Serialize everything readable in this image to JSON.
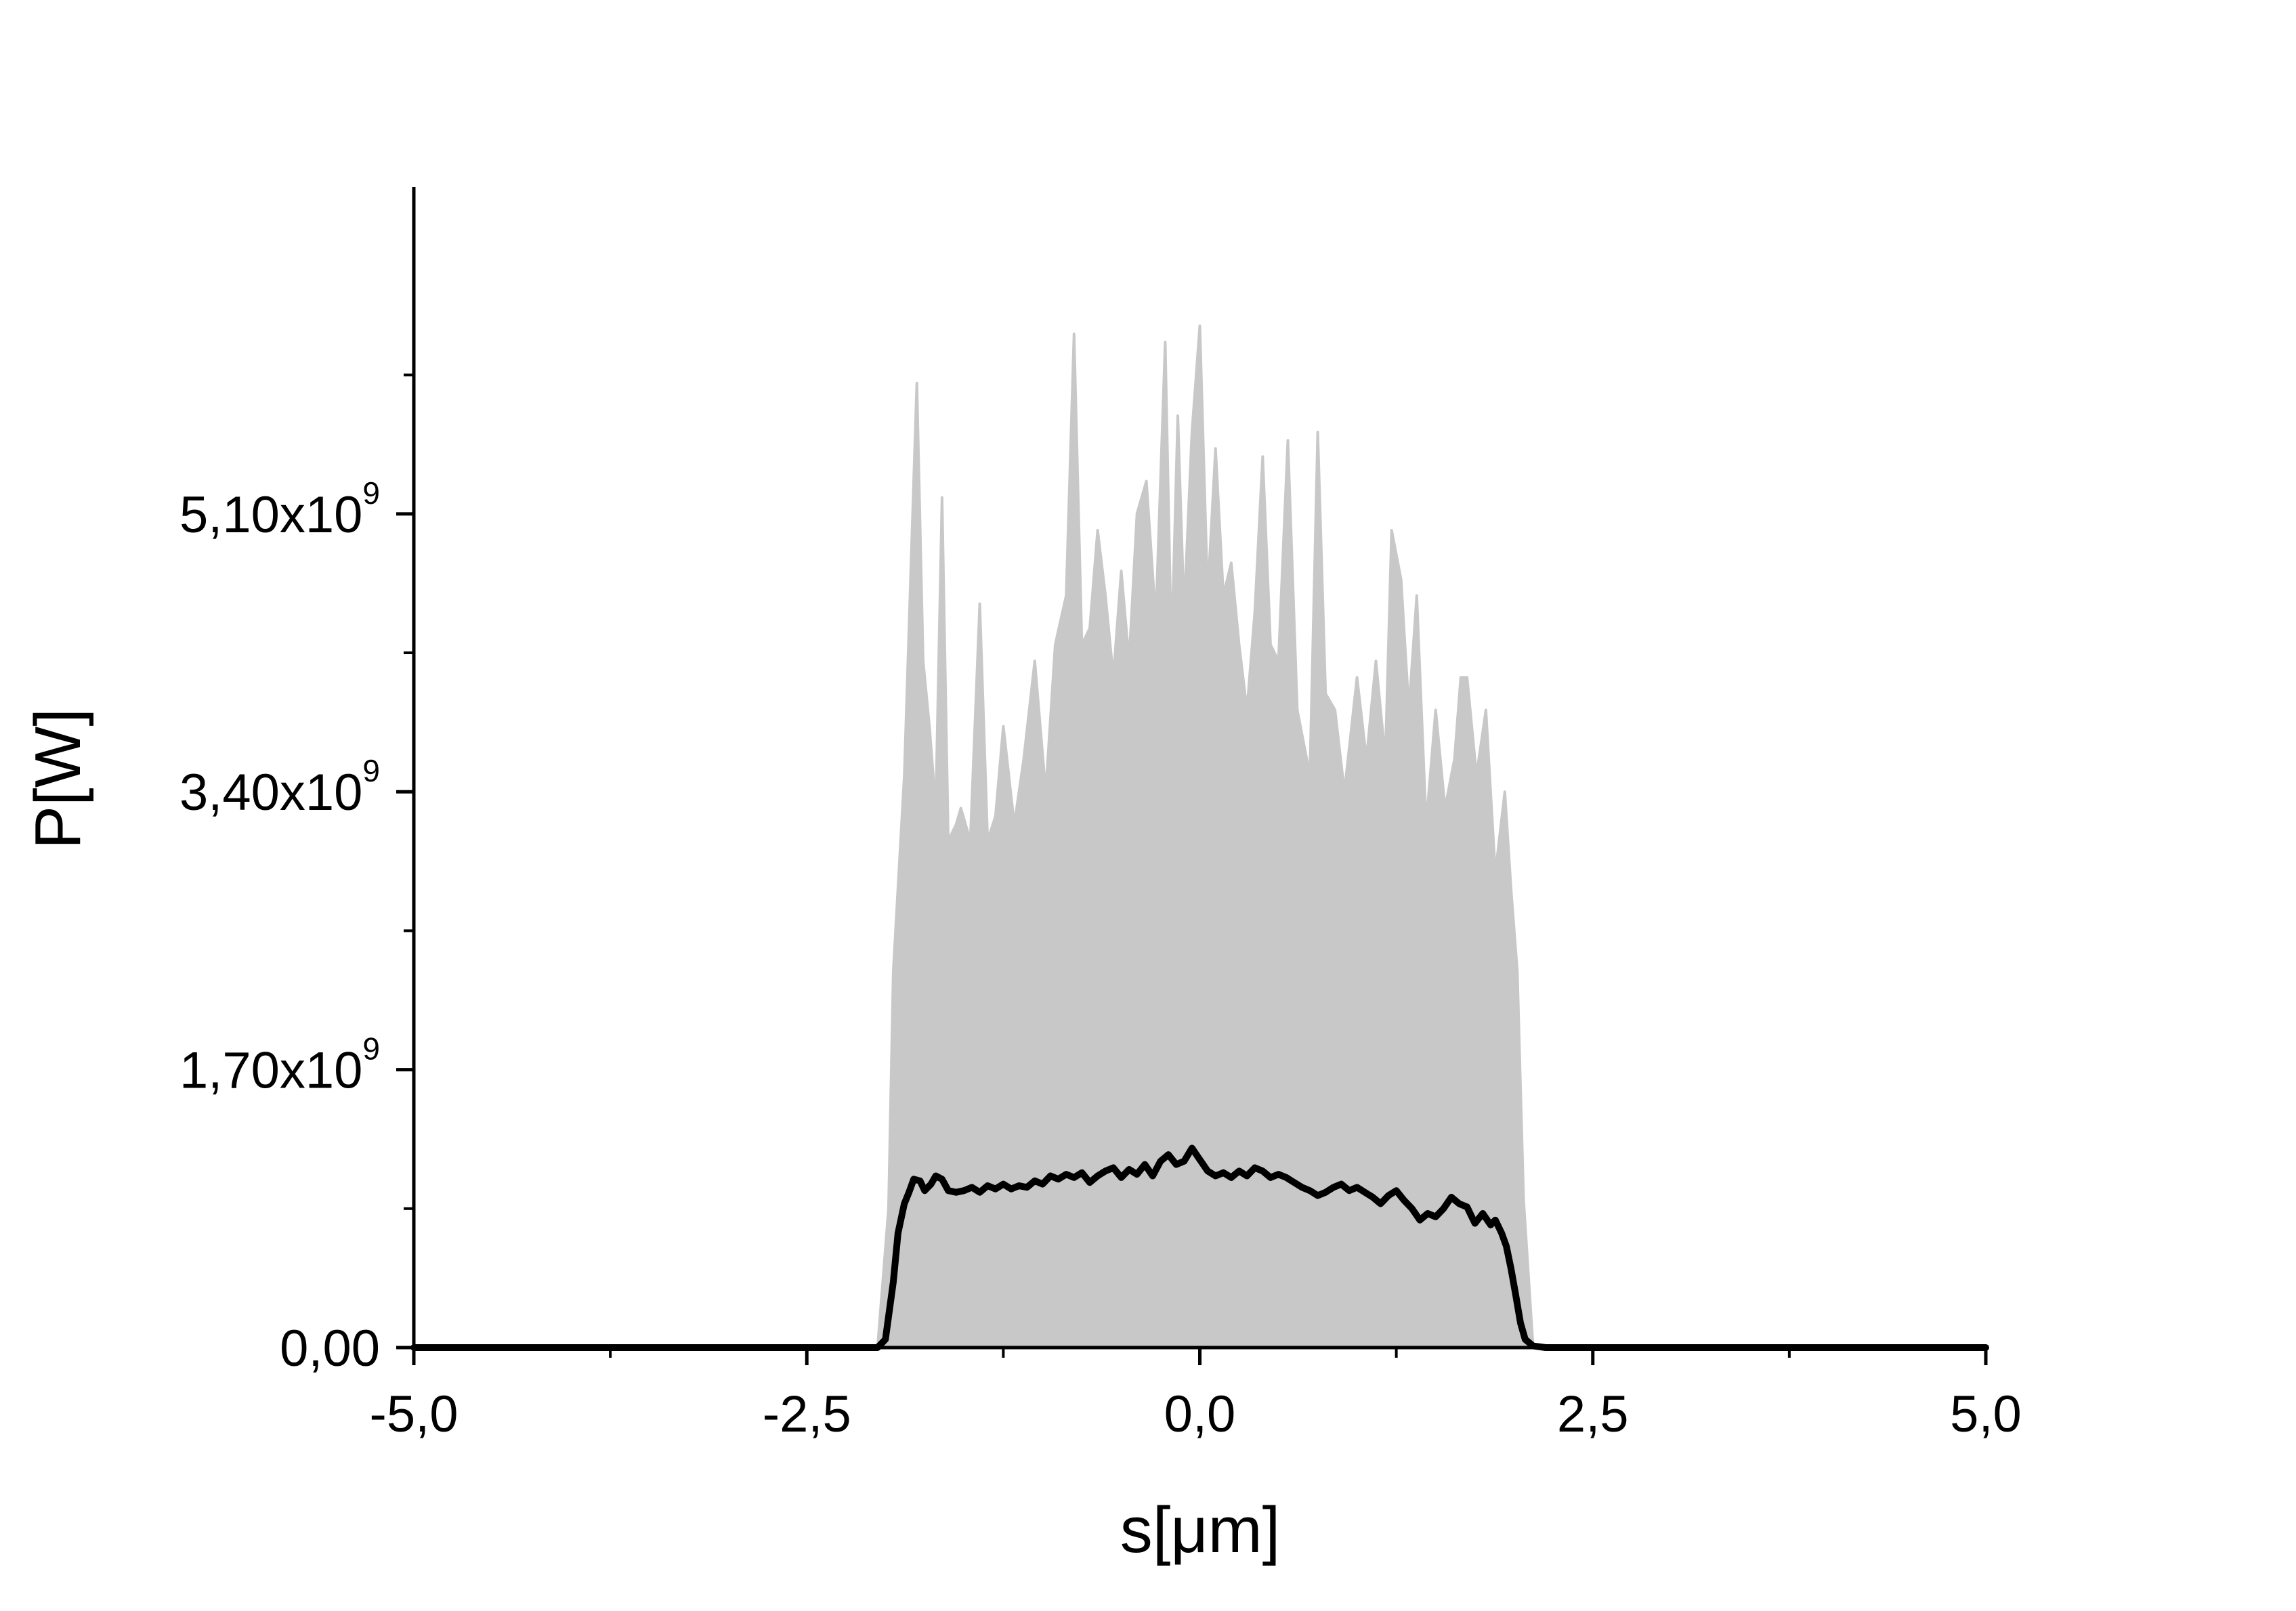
{
  "chart_data": {
    "type": "line",
    "xlabel": "s[μm]",
    "ylabel": "P[W]",
    "xlim": [
      -5.0,
      5.0
    ],
    "ylim": [
      0,
      7100000000.0
    ],
    "x_ticks": [
      {
        "value": -5.0,
        "label": "-5,0"
      },
      {
        "value": -2.5,
        "label": "-2,5"
      },
      {
        "value": 0.0,
        "label": "0,0"
      },
      {
        "value": 2.5,
        "label": "2,5"
      },
      {
        "value": 5.0,
        "label": "5,0"
      }
    ],
    "y_ticks": [
      {
        "value": 0,
        "label": "0,00",
        "mantissa": "",
        "exponent": ""
      },
      {
        "value": 1700000000.0,
        "label": "",
        "mantissa": "1,70x10",
        "exponent": "9"
      },
      {
        "value": 3400000000.0,
        "label": "",
        "mantissa": "3,40x10",
        "exponent": "9"
      },
      {
        "value": 5100000000.0,
        "label": "",
        "mantissa": "5,10x10",
        "exponent": "9"
      }
    ],
    "colors": {
      "shots": "#c8c8c8",
      "average": "#000000",
      "axes": "#000000"
    },
    "series": [
      {
        "role": "individual shots (envelope)",
        "color": "#c8c8c8",
        "x": [
          -2.05,
          -1.98,
          -1.95,
          -1.88,
          -1.84,
          -1.8,
          -1.76,
          -1.72,
          -1.68,
          -1.64,
          -1.6,
          -1.55,
          -1.52,
          -1.46,
          -1.4,
          -1.35,
          -1.3,
          -1.25,
          -1.18,
          -1.12,
          -1.05,
          -0.98,
          -0.92,
          -0.85,
          -0.8,
          -0.75,
          -0.7,
          -0.65,
          -0.6,
          -0.55,
          -0.5,
          -0.45,
          -0.4,
          -0.34,
          -0.28,
          -0.22,
          -0.18,
          -0.14,
          -0.1,
          -0.05,
          0.0,
          0.05,
          0.1,
          0.15,
          0.2,
          0.25,
          0.3,
          0.35,
          0.4,
          0.45,
          0.5,
          0.56,
          0.62,
          0.7,
          0.75,
          0.8,
          0.86,
          0.92,
          1.0,
          1.06,
          1.12,
          1.18,
          1.22,
          1.28,
          1.33,
          1.38,
          1.44,
          1.5,
          1.56,
          1.62,
          1.66,
          1.7,
          1.76,
          1.82,
          1.88,
          1.94,
          1.98,
          2.02,
          2.06,
          2.12
        ],
        "upper": [
          0,
          850000000.0,
          2300000000.0,
          3500000000.0,
          4700000000.0,
          5900000000.0,
          4200000000.0,
          3800000000.0,
          3300000000.0,
          5200000000.0,
          3100000000.0,
          3200000000.0,
          3300000000.0,
          3100000000.0,
          4550000000.0,
          3100000000.0,
          3250000000.0,
          3800000000.0,
          3200000000.0,
          3600000000.0,
          4200000000.0,
          3400000000.0,
          4300000000.0,
          4600000000.0,
          6200000000.0,
          4300000000.0,
          4400000000.0,
          5000000000.0,
          4600000000.0,
          4100000000.0,
          4750000000.0,
          4200000000.0,
          5100000000.0,
          5300000000.0,
          4450000000.0,
          6150000000.0,
          4250000000.0,
          5700000000.0,
          4500000000.0,
          5600000000.0,
          6250000000.0,
          4600000000.0,
          5500000000.0,
          4600000000.0,
          4800000000.0,
          4300000000.0,
          3900000000.0,
          4500000000.0,
          5450000000.0,
          4300000000.0,
          4200000000.0,
          5550000000.0,
          3900000000.0,
          3500000000.0,
          5600000000.0,
          4000000000.0,
          3900000000.0,
          3400000000.0,
          4100000000.0,
          3600000000.0,
          4200000000.0,
          3600000000.0,
          5000000000.0,
          4700000000.0,
          3900000000.0,
          4600000000.0,
          3200000000.0,
          3900000000.0,
          3300000000.0,
          3600000000.0,
          4100000000.0,
          4100000000.0,
          3500000000.0,
          3900000000.0,
          2900000000.0,
          3400000000.0,
          2800000000.0,
          2300000000.0,
          900000000.0,
          0
        ],
        "lower": [
          0,
          50000000.0,
          100000000.0,
          120000000.0,
          100000000.0,
          140000000.0,
          120000000.0,
          150000000.0,
          100000000.0,
          120000000.0,
          140000000.0,
          100000000.0,
          120000000.0,
          150000000.0,
          130000000.0,
          100000000.0,
          120000000.0,
          140000000.0,
          110000000.0,
          130000000.0,
          160000000.0,
          120000000.0,
          100000000.0,
          140000000.0,
          120000000.0,
          150000000.0,
          110000000.0,
          130000000.0,
          100000000.0,
          140000000.0,
          120000000.0,
          160000000.0,
          100000000.0,
          130000000.0,
          150000000.0,
          110000000.0,
          140000000.0,
          120000000.0,
          100000000.0,
          150000000.0,
          130000000.0,
          110000000.0,
          140000000.0,
          120000000.0,
          160000000.0,
          100000000.0,
          130000000.0,
          120000000.0,
          150000000.0,
          100000000.0,
          140000000.0,
          120000000.0,
          110000000.0,
          150000000.0,
          130000000.0,
          100000000.0,
          140000000.0,
          120000000.0,
          160000000.0,
          110000000.0,
          130000000.0,
          100000000.0,
          140000000.0,
          120000000.0,
          150000000.0,
          110000000.0,
          130000000.0,
          100000000.0,
          140000000.0,
          120000000.0,
          110000000.0,
          150000000.0,
          130000000.0,
          100000000.0,
          120000000.0,
          140000000.0,
          100000000.0,
          80000000.0,
          40000000.0,
          0
        ]
      },
      {
        "role": "average",
        "color": "#000000",
        "x": [
          -5.0,
          -2.2,
          -2.05,
          -2.0,
          -1.95,
          -1.92,
          -1.88,
          -1.85,
          -1.82,
          -1.78,
          -1.75,
          -1.71,
          -1.68,
          -1.64,
          -1.6,
          -1.55,
          -1.5,
          -1.45,
          -1.4,
          -1.35,
          -1.3,
          -1.25,
          -1.2,
          -1.15,
          -1.1,
          -1.05,
          -1.0,
          -0.95,
          -0.9,
          -0.85,
          -0.8,
          -0.75,
          -0.7,
          -0.65,
          -0.6,
          -0.55,
          -0.5,
          -0.45,
          -0.4,
          -0.35,
          -0.3,
          -0.25,
          -0.2,
          -0.15,
          -0.1,
          -0.05,
          0.0,
          0.05,
          0.1,
          0.15,
          0.2,
          0.25,
          0.3,
          0.35,
          0.4,
          0.45,
          0.5,
          0.55,
          0.6,
          0.65,
          0.7,
          0.75,
          0.8,
          0.85,
          0.9,
          0.95,
          1.0,
          1.05,
          1.1,
          1.15,
          1.2,
          1.25,
          1.3,
          1.35,
          1.4,
          1.45,
          1.5,
          1.55,
          1.6,
          1.65,
          1.7,
          1.75,
          1.8,
          1.85,
          1.88,
          1.92,
          1.95,
          1.98,
          2.01,
          2.04,
          2.07,
          2.12,
          2.2,
          5.0
        ],
        "y": [
          0,
          0,
          0,
          50000000.0,
          400000000.0,
          700000000.0,
          880000000.0,
          950000000.0,
          1030000000.0,
          1020000000.0,
          960000000.0,
          1000000000.0,
          1050000000.0,
          1030000000.0,
          960000000.0,
          950000000.0,
          960000000.0,
          980000000.0,
          950000000.0,
          990000000.0,
          970000000.0,
          1000000000.0,
          970000000.0,
          990000000.0,
          980000000.0,
          1020000000.0,
          1000000000.0,
          1050000000.0,
          1030000000.0,
          1060000000.0,
          1040000000.0,
          1070000000.0,
          1010000000.0,
          1050000000.0,
          1080000000.0,
          1100000000.0,
          1040000000.0,
          1090000000.0,
          1060000000.0,
          1120000000.0,
          1050000000.0,
          1140000000.0,
          1180000000.0,
          1120000000.0,
          1140000000.0,
          1220000000.0,
          1150000000.0,
          1080000000.0,
          1050000000.0,
          1070000000.0,
          1040000000.0,
          1080000000.0,
          1050000000.0,
          1100000000.0,
          1080000000.0,
          1040000000.0,
          1060000000.0,
          1040000000.0,
          1010000000.0,
          980000000.0,
          960000000.0,
          930000000.0,
          950000000.0,
          980000000.0,
          1000000000.0,
          960000000.0,
          980000000.0,
          950000000.0,
          920000000.0,
          880000000.0,
          930000000.0,
          960000000.0,
          900000000.0,
          850000000.0,
          780000000.0,
          820000000.0,
          800000000.0,
          850000000.0,
          920000000.0,
          880000000.0,
          860000000.0,
          760000000.0,
          820000000.0,
          750000000.0,
          780000000.0,
          700000000.0,
          620000000.0,
          480000000.0,
          320000000.0,
          150000000.0,
          50000000.0,
          10000000.0,
          0,
          0
        ]
      }
    ]
  }
}
